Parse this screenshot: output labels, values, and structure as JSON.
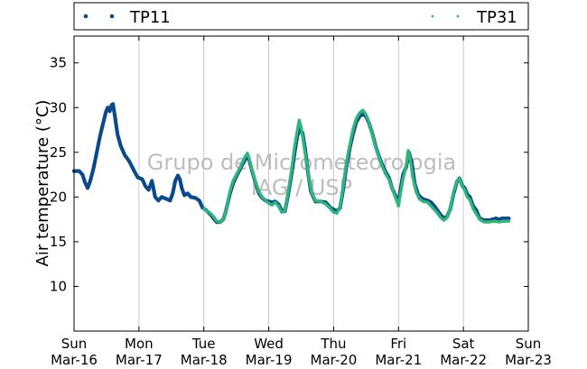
{
  "chart_data": {
    "type": "scatter",
    "title": "",
    "xlabel": "",
    "ylabel": "Air temperature (°C)",
    "x_unit": "days since Sun Mar-16 00:00",
    "xlim": [
      0,
      7
    ],
    "ylim": [
      5,
      38
    ],
    "yticks": [
      10,
      15,
      20,
      25,
      30,
      35
    ],
    "xticks": [
      {
        "day": "Sun",
        "date": "Mar-16"
      },
      {
        "day": "Mon",
        "date": "Mar-17"
      },
      {
        "day": "Tue",
        "date": "Mar-18"
      },
      {
        "day": "Wed",
        "date": "Mar-19"
      },
      {
        "day": "Thu",
        "date": "Mar-20"
      },
      {
        "day": "Fri",
        "date": "Mar-21"
      },
      {
        "day": "Sat",
        "date": "Mar-22"
      },
      {
        "day": "Sun",
        "date": "Mar-23"
      }
    ],
    "grid": "vertical",
    "legend_position": "top",
    "watermark": [
      "Grupo de Micrometeorologia",
      "IAG / USP"
    ],
    "series": [
      {
        "name": "TP11",
        "color": "#0b4a8a",
        "marker": "dot",
        "points": [
          [
            0.0,
            22.9
          ],
          [
            0.08,
            22.9
          ],
          [
            0.13,
            22.5
          ],
          [
            0.17,
            21.6
          ],
          [
            0.21,
            21.0
          ],
          [
            0.25,
            21.8
          ],
          [
            0.3,
            23.2
          ],
          [
            0.35,
            25.0
          ],
          [
            0.4,
            26.8
          ],
          [
            0.45,
            28.3
          ],
          [
            0.49,
            29.5
          ],
          [
            0.52,
            30.0
          ],
          [
            0.55,
            29.6
          ],
          [
            0.58,
            30.3
          ],
          [
            0.6,
            30.4
          ],
          [
            0.63,
            29.0
          ],
          [
            0.67,
            27.0
          ],
          [
            0.72,
            25.7
          ],
          [
            0.78,
            24.7
          ],
          [
            0.85,
            24.0
          ],
          [
            0.92,
            23.0
          ],
          [
            0.98,
            22.2
          ],
          [
            1.05,
            22.0
          ],
          [
            1.1,
            21.2
          ],
          [
            1.15,
            20.8
          ],
          [
            1.2,
            21.8
          ],
          [
            1.25,
            20.0
          ],
          [
            1.3,
            19.6
          ],
          [
            1.35,
            20.0
          ],
          [
            1.42,
            19.8
          ],
          [
            1.48,
            19.6
          ],
          [
            1.52,
            20.4
          ],
          [
            1.56,
            21.8
          ],
          [
            1.6,
            22.4
          ],
          [
            1.63,
            22.0
          ],
          [
            1.66,
            21.0
          ],
          [
            1.7,
            20.2
          ],
          [
            1.75,
            20.4
          ],
          [
            1.8,
            20.0
          ],
          [
            1.87,
            19.9
          ],
          [
            1.93,
            19.6
          ],
          [
            1.98,
            18.8
          ],
          [
            2.04,
            18.5
          ],
          [
            2.08,
            18.2
          ],
          [
            2.12,
            17.9
          ],
          [
            2.16,
            17.5
          ],
          [
            2.2,
            17.2
          ],
          [
            2.25,
            17.2
          ],
          [
            2.3,
            17.5
          ],
          [
            2.34,
            18.4
          ],
          [
            2.4,
            20.3
          ],
          [
            2.45,
            21.5
          ],
          [
            2.5,
            22.3
          ],
          [
            2.55,
            23.0
          ],
          [
            2.62,
            24.0
          ],
          [
            2.67,
            24.6
          ],
          [
            2.7,
            24.1
          ],
          [
            2.74,
            23.0
          ],
          [
            2.8,
            21.5
          ],
          [
            2.85,
            20.4
          ],
          [
            2.9,
            19.9
          ],
          [
            2.95,
            19.6
          ],
          [
            3.0,
            19.5
          ],
          [
            3.05,
            19.4
          ],
          [
            3.1,
            19.5
          ],
          [
            3.15,
            19.2
          ],
          [
            3.2,
            18.5
          ],
          [
            3.25,
            18.4
          ],
          [
            3.3,
            20.3
          ],
          [
            3.35,
            22.5
          ],
          [
            3.4,
            25.0
          ],
          [
            3.44,
            26.8
          ],
          [
            3.48,
            27.6
          ],
          [
            3.52,
            27.2
          ],
          [
            3.56,
            25.4
          ],
          [
            3.6,
            23.0
          ],
          [
            3.65,
            20.6
          ],
          [
            3.72,
            19.5
          ],
          [
            3.8,
            19.5
          ],
          [
            3.88,
            19.4
          ],
          [
            3.95,
            18.8
          ],
          [
            4.0,
            18.6
          ],
          [
            4.05,
            18.4
          ],
          [
            4.1,
            18.8
          ],
          [
            4.15,
            21.0
          ],
          [
            4.2,
            23.6
          ],
          [
            4.25,
            25.5
          ],
          [
            4.3,
            27.1
          ],
          [
            4.35,
            28.4
          ],
          [
            4.4,
            29.0
          ],
          [
            4.45,
            29.3
          ],
          [
            4.5,
            29.0
          ],
          [
            4.55,
            28.2
          ],
          [
            4.6,
            27.0
          ],
          [
            4.65,
            25.6
          ],
          [
            4.7,
            24.5
          ],
          [
            4.75,
            23.6
          ],
          [
            4.8,
            22.8
          ],
          [
            4.85,
            22.2
          ],
          [
            4.9,
            21.0
          ],
          [
            4.95,
            20.2
          ],
          [
            5.0,
            19.4
          ],
          [
            5.03,
            20.8
          ],
          [
            5.07,
            22.5
          ],
          [
            5.12,
            23.4
          ],
          [
            5.16,
            25.0
          ],
          [
            5.2,
            24.0
          ],
          [
            5.25,
            21.5
          ],
          [
            5.3,
            20.3
          ],
          [
            5.35,
            19.9
          ],
          [
            5.4,
            19.7
          ],
          [
            5.45,
            19.6
          ],
          [
            5.5,
            19.4
          ],
          [
            5.55,
            19.0
          ],
          [
            5.6,
            18.5
          ],
          [
            5.65,
            18.0
          ],
          [
            5.7,
            17.6
          ],
          [
            5.75,
            17.8
          ],
          [
            5.8,
            18.7
          ],
          [
            5.85,
            20.4
          ],
          [
            5.9,
            21.7
          ],
          [
            5.94,
            22.1
          ],
          [
            5.98,
            21.3
          ],
          [
            6.02,
            21.0
          ],
          [
            6.06,
            20.3
          ],
          [
            6.1,
            20.0
          ],
          [
            6.15,
            19.0
          ],
          [
            6.2,
            18.5
          ],
          [
            6.25,
            17.6
          ],
          [
            6.32,
            17.4
          ],
          [
            6.4,
            17.4
          ],
          [
            6.45,
            17.5
          ],
          [
            6.5,
            17.6
          ],
          [
            6.55,
            17.5
          ],
          [
            6.6,
            17.6
          ],
          [
            6.7,
            17.6
          ]
        ]
      },
      {
        "name": "TP31",
        "color": "#2fb67a",
        "marker": "dot",
        "points": [
          [
            2.0,
            18.7
          ],
          [
            2.05,
            18.4
          ],
          [
            2.1,
            18.2
          ],
          [
            2.15,
            17.8
          ],
          [
            2.2,
            17.3
          ],
          [
            2.25,
            17.2
          ],
          [
            2.3,
            17.5
          ],
          [
            2.35,
            18.6
          ],
          [
            2.4,
            20.6
          ],
          [
            2.45,
            21.8
          ],
          [
            2.5,
            22.5
          ],
          [
            2.56,
            23.3
          ],
          [
            2.62,
            24.3
          ],
          [
            2.67,
            24.9
          ],
          [
            2.7,
            24.3
          ],
          [
            2.74,
            23.1
          ],
          [
            2.8,
            21.6
          ],
          [
            2.85,
            20.6
          ],
          [
            2.9,
            20.0
          ],
          [
            2.95,
            19.6
          ],
          [
            3.0,
            19.3
          ],
          [
            3.05,
            19.1
          ],
          [
            3.1,
            19.4
          ],
          [
            3.15,
            19.0
          ],
          [
            3.2,
            18.3
          ],
          [
            3.25,
            18.4
          ],
          [
            3.3,
            20.6
          ],
          [
            3.35,
            23.0
          ],
          [
            3.4,
            25.7
          ],
          [
            3.44,
            27.4
          ],
          [
            3.47,
            28.6
          ],
          [
            3.5,
            27.8
          ],
          [
            3.53,
            26.4
          ],
          [
            3.57,
            24.4
          ],
          [
            3.61,
            22.6
          ],
          [
            3.66,
            20.5
          ],
          [
            3.72,
            19.6
          ],
          [
            3.8,
            19.5
          ],
          [
            3.88,
            19.2
          ],
          [
            3.95,
            18.7
          ],
          [
            4.0,
            18.3
          ],
          [
            4.05,
            18.2
          ],
          [
            4.1,
            18.9
          ],
          [
            4.15,
            21.4
          ],
          [
            4.2,
            24.0
          ],
          [
            4.25,
            25.9
          ],
          [
            4.3,
            27.6
          ],
          [
            4.35,
            28.8
          ],
          [
            4.4,
            29.4
          ],
          [
            4.45,
            29.7
          ],
          [
            4.5,
            29.2
          ],
          [
            4.55,
            28.3
          ],
          [
            4.6,
            26.9
          ],
          [
            4.65,
            25.5
          ],
          [
            4.7,
            24.4
          ],
          [
            4.75,
            23.4
          ],
          [
            4.8,
            22.6
          ],
          [
            4.85,
            22.0
          ],
          [
            4.9,
            21.0
          ],
          [
            4.95,
            20.0
          ],
          [
            5.0,
            19.0
          ],
          [
            5.03,
            20.4
          ],
          [
            5.07,
            22.0
          ],
          [
            5.12,
            23.6
          ],
          [
            5.15,
            25.2
          ],
          [
            5.18,
            24.3
          ],
          [
            5.22,
            22.2
          ],
          [
            5.27,
            20.6
          ],
          [
            5.32,
            19.8
          ],
          [
            5.38,
            19.5
          ],
          [
            5.45,
            19.4
          ],
          [
            5.5,
            19.0
          ],
          [
            5.55,
            18.6
          ],
          [
            5.6,
            18.2
          ],
          [
            5.65,
            17.7
          ],
          [
            5.7,
            17.4
          ],
          [
            5.75,
            17.7
          ],
          [
            5.8,
            18.7
          ],
          [
            5.85,
            20.6
          ],
          [
            5.9,
            21.8
          ],
          [
            5.94,
            22.1
          ],
          [
            5.98,
            21.2
          ],
          [
            6.02,
            20.8
          ],
          [
            6.06,
            20.0
          ],
          [
            6.1,
            19.7
          ],
          [
            6.15,
            18.7
          ],
          [
            6.2,
            18.1
          ],
          [
            6.25,
            17.5
          ],
          [
            6.32,
            17.2
          ],
          [
            6.4,
            17.2
          ],
          [
            6.48,
            17.3
          ],
          [
            6.55,
            17.2
          ],
          [
            6.62,
            17.3
          ],
          [
            6.7,
            17.3
          ]
        ]
      }
    ]
  }
}
